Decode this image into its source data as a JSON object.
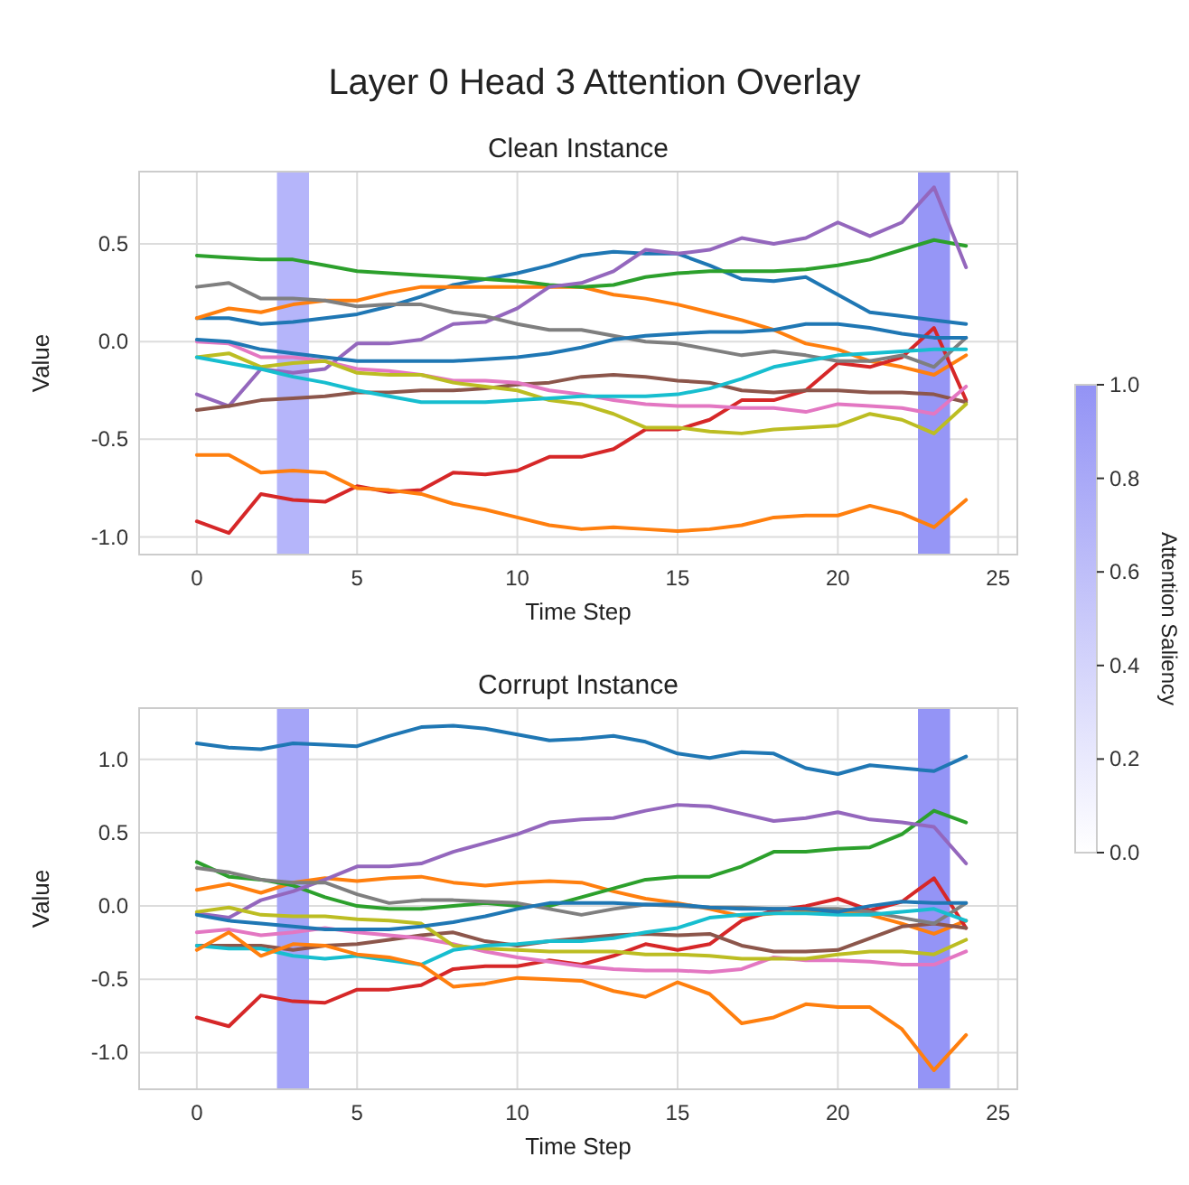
{
  "chart_data": [
    {
      "type": "line",
      "title": "Layer 0 Head 3 Attention Overlay",
      "subtitle": "Clean Instance",
      "xlabel": "Time Step",
      "ylabel": "Value",
      "clabel": "Attention Saliency",
      "clim": [
        0,
        1
      ],
      "cticks": [
        {
          "value": 0,
          "label": "0.0"
        },
        {
          "value": 0.2,
          "label": "0.2"
        },
        {
          "value": 0.4,
          "label": "0.4"
        },
        {
          "value": 0.6,
          "label": "0.6"
        },
        {
          "value": 0.8,
          "label": "0.8"
        },
        {
          "value": 1,
          "label": "1.0"
        }
      ],
      "x": [
        0,
        1,
        2,
        3,
        4,
        5,
        6,
        7,
        8,
        9,
        10,
        11,
        12,
        13,
        14,
        15,
        16,
        17,
        18,
        19,
        20,
        21,
        22,
        23,
        24
      ],
      "xlim": [
        -1.8,
        25.6
      ],
      "xticks": [
        0,
        5,
        10,
        15,
        20,
        25
      ],
      "ylim": [
        -1.09,
        0.87
      ],
      "yticks": [
        {
          "value": -1,
          "label": "-1.0"
        },
        {
          "value": -0.5,
          "label": "-0.5"
        },
        {
          "value": 0,
          "label": "0.0"
        },
        {
          "value": 0.5,
          "label": "0.5"
        }
      ],
      "grid": true,
      "marker": "none",
      "line_style": "solid",
      "bands": [
        {
          "axis": "x",
          "from": 2.5,
          "to": 3.5,
          "color": "#b5b5fa"
        },
        {
          "axis": "x",
          "from": 22.5,
          "to": 23.5,
          "color": "#9696f6"
        }
      ],
      "series": [
        {
          "color": "#1f77b4",
          "values": [
            0.12,
            0.12,
            0.09,
            0.1,
            0.12,
            0.14,
            0.18,
            0.23,
            0.29,
            0.32,
            0.35,
            0.39,
            0.44,
            0.46,
            0.45,
            0.45,
            0.39,
            0.32,
            0.31,
            0.33,
            0.24,
            0.15,
            0.13,
            0.11,
            0.09
          ]
        },
        {
          "color": "#ff7f0e",
          "values": [
            0.12,
            0.17,
            0.15,
            0.19,
            0.21,
            0.21,
            0.25,
            0.28,
            0.28,
            0.28,
            0.28,
            0.28,
            0.28,
            0.24,
            0.22,
            0.19,
            0.15,
            0.11,
            0.06,
            -0.01,
            -0.04,
            -0.1,
            -0.13,
            -0.17,
            -0.07
          ]
        },
        {
          "color": "#2ca02c",
          "values": [
            0.44,
            0.43,
            0.42,
            0.42,
            0.39,
            0.36,
            0.35,
            0.34,
            0.33,
            0.32,
            0.31,
            0.29,
            0.28,
            0.29,
            0.33,
            0.35,
            0.36,
            0.36,
            0.36,
            0.37,
            0.39,
            0.42,
            0.47,
            0.52,
            0.49
          ]
        },
        {
          "color": "#d62728",
          "values": [
            -0.92,
            -0.98,
            -0.78,
            -0.81,
            -0.82,
            -0.74,
            -0.77,
            -0.76,
            -0.67,
            -0.68,
            -0.66,
            -0.59,
            -0.59,
            -0.55,
            -0.45,
            -0.45,
            -0.4,
            -0.3,
            -0.3,
            -0.25,
            -0.11,
            -0.13,
            -0.08,
            0.07,
            -0.3
          ]
        },
        {
          "color": "#9467bd",
          "values": [
            -0.27,
            -0.33,
            -0.14,
            -0.16,
            -0.14,
            -0.01,
            -0.01,
            0.01,
            0.09,
            0.1,
            0.17,
            0.28,
            0.3,
            0.36,
            0.47,
            0.45,
            0.47,
            0.53,
            0.5,
            0.53,
            0.61,
            0.54,
            0.61,
            0.79,
            0.38
          ]
        },
        {
          "color": "#8c564b",
          "values": [
            -0.35,
            -0.33,
            -0.3,
            -0.29,
            -0.28,
            -0.26,
            -0.26,
            -0.25,
            -0.25,
            -0.24,
            -0.22,
            -0.21,
            -0.18,
            -0.17,
            -0.18,
            -0.2,
            -0.21,
            -0.25,
            -0.26,
            -0.25,
            -0.25,
            -0.26,
            -0.26,
            -0.27,
            -0.31
          ]
        },
        {
          "color": "#e377c2",
          "values": [
            0.0,
            -0.01,
            -0.08,
            -0.08,
            -0.1,
            -0.14,
            -0.15,
            -0.17,
            -0.2,
            -0.2,
            -0.21,
            -0.25,
            -0.27,
            -0.3,
            -0.32,
            -0.33,
            -0.33,
            -0.34,
            -0.34,
            -0.36,
            -0.32,
            -0.33,
            -0.34,
            -0.37,
            -0.23
          ]
        },
        {
          "color": "#7f7f7f",
          "values": [
            0.28,
            0.3,
            0.22,
            0.22,
            0.21,
            0.18,
            0.19,
            0.19,
            0.15,
            0.13,
            0.09,
            0.06,
            0.06,
            0.03,
            0.0,
            -0.01,
            -0.04,
            -0.07,
            -0.05,
            -0.07,
            -0.1,
            -0.1,
            -0.07,
            -0.13,
            0.02
          ]
        },
        {
          "color": "#bcbd22",
          "values": [
            -0.08,
            -0.06,
            -0.13,
            -0.11,
            -0.1,
            -0.16,
            -0.17,
            -0.17,
            -0.21,
            -0.23,
            -0.25,
            -0.3,
            -0.32,
            -0.37,
            -0.44,
            -0.44,
            -0.46,
            -0.47,
            -0.45,
            -0.44,
            -0.43,
            -0.37,
            -0.4,
            -0.47,
            -0.32
          ]
        },
        {
          "color": "#17becf",
          "values": [
            -0.08,
            -0.11,
            -0.14,
            -0.18,
            -0.21,
            -0.25,
            -0.28,
            -0.31,
            -0.31,
            -0.31,
            -0.3,
            -0.29,
            -0.28,
            -0.28,
            -0.28,
            -0.27,
            -0.24,
            -0.19,
            -0.13,
            -0.1,
            -0.07,
            -0.06,
            -0.05,
            -0.04,
            -0.04
          ]
        },
        {
          "color": "#1f77b4",
          "values": [
            0.01,
            0.0,
            -0.04,
            -0.06,
            -0.08,
            -0.1,
            -0.1,
            -0.1,
            -0.1,
            -0.09,
            -0.08,
            -0.06,
            -0.03,
            0.01,
            0.03,
            0.04,
            0.05,
            0.05,
            0.06,
            0.09,
            0.09,
            0.07,
            0.04,
            0.02,
            0.02
          ]
        },
        {
          "color": "#ff7f0e",
          "values": [
            -0.58,
            -0.58,
            -0.67,
            -0.66,
            -0.67,
            -0.75,
            -0.76,
            -0.78,
            -0.83,
            -0.86,
            -0.9,
            -0.94,
            -0.96,
            -0.95,
            -0.96,
            -0.97,
            -0.96,
            -0.94,
            -0.9,
            -0.89,
            -0.89,
            -0.84,
            -0.88,
            -0.95,
            -0.81
          ]
        }
      ]
    },
    {
      "type": "line",
      "subtitle": "Corrupt Instance",
      "xlabel": "Time Step",
      "ylabel": "Value",
      "x": [
        0,
        1,
        2,
        3,
        4,
        5,
        6,
        7,
        8,
        9,
        10,
        11,
        12,
        13,
        14,
        15,
        16,
        17,
        18,
        19,
        20,
        21,
        22,
        23,
        24
      ],
      "xlim": [
        -1.8,
        25.6
      ],
      "xticks": [
        0,
        5,
        10,
        15,
        20,
        25
      ],
      "ylim": [
        -1.25,
        1.35
      ],
      "yticks": [
        {
          "value": -1,
          "label": "-1.0"
        },
        {
          "value": -0.5,
          "label": "-0.5"
        },
        {
          "value": 0,
          "label": "0.0"
        },
        {
          "value": 0.5,
          "label": "0.5"
        },
        {
          "value": 1,
          "label": "1.0"
        }
      ],
      "grid": true,
      "marker": "none",
      "line_style": "solid",
      "bands": [
        {
          "axis": "x",
          "from": 2.5,
          "to": 3.5,
          "color": "#a5a5f8"
        },
        {
          "axis": "x",
          "from": 22.5,
          "to": 23.5,
          "color": "#9494f6"
        }
      ],
      "series": [
        {
          "color": "#1f77b4",
          "values": [
            1.11,
            1.08,
            1.07,
            1.11,
            1.1,
            1.09,
            1.16,
            1.22,
            1.23,
            1.21,
            1.17,
            1.13,
            1.14,
            1.16,
            1.12,
            1.04,
            1.01,
            1.05,
            1.04,
            0.94,
            0.9,
            0.96,
            0.94,
            0.92,
            1.02
          ]
        },
        {
          "color": "#ff7f0e",
          "values": [
            0.11,
            0.15,
            0.09,
            0.16,
            0.19,
            0.17,
            0.19,
            0.2,
            0.16,
            0.14,
            0.16,
            0.17,
            0.16,
            0.1,
            0.05,
            0.02,
            -0.02,
            -0.07,
            -0.05,
            -0.04,
            -0.04,
            -0.06,
            -0.12,
            -0.19,
            -0.1
          ]
        },
        {
          "color": "#2ca02c",
          "values": [
            0.3,
            0.2,
            0.18,
            0.14,
            0.06,
            0.0,
            -0.02,
            -0.02,
            0.0,
            0.02,
            0.0,
            0.0,
            0.06,
            0.12,
            0.18,
            0.2,
            0.2,
            0.27,
            0.37,
            0.37,
            0.39,
            0.4,
            0.49,
            0.65,
            0.57
          ]
        },
        {
          "color": "#d62728",
          "values": [
            -0.76,
            -0.82,
            -0.61,
            -0.65,
            -0.66,
            -0.57,
            -0.57,
            -0.54,
            -0.43,
            -0.41,
            -0.41,
            -0.37,
            -0.4,
            -0.34,
            -0.26,
            -0.3,
            -0.26,
            -0.1,
            -0.03,
            0.0,
            0.05,
            -0.03,
            0.03,
            0.19,
            -0.15
          ]
        },
        {
          "color": "#9467bd",
          "values": [
            -0.05,
            -0.08,
            0.04,
            0.1,
            0.18,
            0.27,
            0.27,
            0.29,
            0.37,
            0.43,
            0.49,
            0.57,
            0.59,
            0.6,
            0.65,
            0.69,
            0.68,
            0.63,
            0.58,
            0.6,
            0.64,
            0.59,
            0.57,
            0.54,
            0.29
          ]
        },
        {
          "color": "#8c564b",
          "values": [
            -0.27,
            -0.27,
            -0.27,
            -0.3,
            -0.27,
            -0.26,
            -0.23,
            -0.2,
            -0.18,
            -0.24,
            -0.27,
            -0.24,
            -0.22,
            -0.2,
            -0.19,
            -0.2,
            -0.19,
            -0.27,
            -0.31,
            -0.31,
            -0.3,
            -0.22,
            -0.14,
            -0.12,
            -0.15
          ]
        },
        {
          "color": "#e377c2",
          "values": [
            -0.18,
            -0.16,
            -0.2,
            -0.18,
            -0.15,
            -0.18,
            -0.2,
            -0.22,
            -0.26,
            -0.31,
            -0.35,
            -0.38,
            -0.41,
            -0.43,
            -0.44,
            -0.44,
            -0.45,
            -0.43,
            -0.35,
            -0.37,
            -0.37,
            -0.38,
            -0.4,
            -0.4,
            -0.31
          ]
        },
        {
          "color": "#7f7f7f",
          "values": [
            0.26,
            0.23,
            0.18,
            0.16,
            0.16,
            0.08,
            0.02,
            0.04,
            0.04,
            0.03,
            0.02,
            -0.02,
            -0.06,
            -0.02,
            0.01,
            0.0,
            -0.01,
            -0.01,
            -0.02,
            -0.02,
            -0.02,
            -0.04,
            -0.08,
            -0.12,
            0.02
          ]
        },
        {
          "color": "#bcbd22",
          "values": [
            -0.04,
            -0.01,
            -0.06,
            -0.07,
            -0.07,
            -0.09,
            -0.1,
            -0.12,
            -0.27,
            -0.29,
            -0.3,
            -0.31,
            -0.31,
            -0.31,
            -0.33,
            -0.33,
            -0.34,
            -0.36,
            -0.36,
            -0.36,
            -0.33,
            -0.31,
            -0.31,
            -0.33,
            -0.23
          ]
        },
        {
          "color": "#17becf",
          "values": [
            -0.27,
            -0.29,
            -0.29,
            -0.34,
            -0.36,
            -0.34,
            -0.37,
            -0.4,
            -0.3,
            -0.27,
            -0.26,
            -0.24,
            -0.24,
            -0.22,
            -0.18,
            -0.15,
            -0.08,
            -0.06,
            -0.05,
            -0.05,
            -0.06,
            -0.06,
            -0.04,
            -0.02,
            -0.1
          ]
        },
        {
          "color": "#1f77b4",
          "values": [
            -0.06,
            -0.1,
            -0.12,
            -0.14,
            -0.16,
            -0.16,
            -0.16,
            -0.14,
            -0.11,
            -0.07,
            -0.02,
            0.02,
            0.02,
            0.02,
            0.01,
            0.01,
            -0.01,
            -0.02,
            -0.02,
            -0.02,
            -0.04,
            0.0,
            0.03,
            0.02,
            0.02
          ]
        },
        {
          "color": "#ff7f0e",
          "values": [
            -0.3,
            -0.18,
            -0.34,
            -0.26,
            -0.27,
            -0.33,
            -0.35,
            -0.4,
            -0.55,
            -0.53,
            -0.49,
            -0.5,
            -0.51,
            -0.58,
            -0.62,
            -0.52,
            -0.6,
            -0.8,
            -0.76,
            -0.67,
            -0.69,
            -0.69,
            -0.84,
            -1.12,
            -0.88
          ]
        }
      ]
    }
  ]
}
